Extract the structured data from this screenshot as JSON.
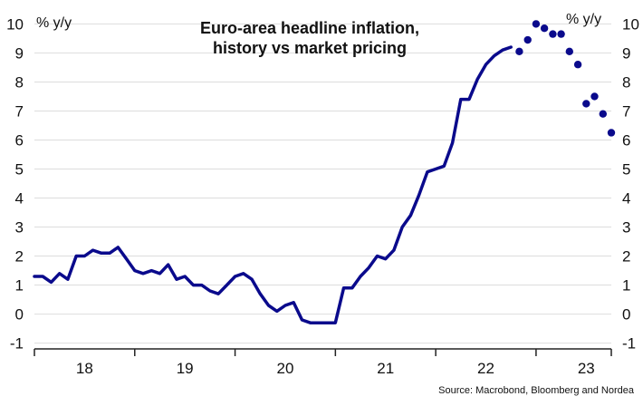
{
  "chart_data": {
    "type": "line",
    "title_lines": [
      "Euro-area headline inflation,",
      "history vs market pricing"
    ],
    "y_unit_left": "% y/y",
    "y_unit_right": "% y/y",
    "source": "Source: Macrobond, Bloomberg and Nordea",
    "ylim": [
      -1.2,
      10.2
    ],
    "yticks": [
      -1,
      0,
      1,
      2,
      3,
      4,
      5,
      6,
      7,
      8,
      9,
      10
    ],
    "xlim": [
      2017.5,
      2023.25
    ],
    "year_ticks": [
      2017.5,
      2018.5,
      2019.5,
      2020.5,
      2021.5,
      2022.5,
      2023.5
    ],
    "x_labels": [
      {
        "x": 2018.0,
        "text": "18"
      },
      {
        "x": 2019.0,
        "text": "19"
      },
      {
        "x": 2020.0,
        "text": "20"
      },
      {
        "x": 2021.0,
        "text": "21"
      },
      {
        "x": 2022.0,
        "text": "22"
      },
      {
        "x": 2023.0,
        "text": "23"
      }
    ],
    "grid": true,
    "colors": {
      "history": "#0a0a8c",
      "market": "#0a0a8c",
      "grid": "#dddddd",
      "axis": "#222222"
    },
    "series": [
      {
        "style": "line",
        "x": [
          2017.5,
          2017.583,
          2017.667,
          2017.75,
          2017.833,
          2017.917,
          2018.0,
          2018.083,
          2018.167,
          2018.25,
          2018.333,
          2018.417,
          2018.5,
          2018.583,
          2018.667,
          2018.75,
          2018.833,
          2018.917,
          2019.0,
          2019.083,
          2019.167,
          2019.25,
          2019.333,
          2019.417,
          2019.5,
          2019.583,
          2019.667,
          2019.75,
          2019.833,
          2019.917,
          2020.0,
          2020.083,
          2020.167,
          2020.25,
          2020.333,
          2020.417,
          2020.5,
          2020.583,
          2020.667,
          2020.75,
          2020.833,
          2020.917,
          2021.0,
          2021.083,
          2021.167,
          2021.25,
          2021.333,
          2021.417,
          2021.5,
          2021.583,
          2021.667,
          2021.75,
          2021.833,
          2021.917,
          2022.0,
          2022.083,
          2022.167,
          2022.25
        ],
        "y": [
          1.3,
          1.3,
          1.1,
          1.4,
          1.2,
          2.0,
          2.0,
          2.2,
          2.1,
          2.1,
          2.3,
          1.9,
          1.5,
          1.4,
          1.5,
          1.4,
          1.7,
          1.2,
          1.3,
          1.0,
          1.0,
          0.8,
          0.7,
          1.0,
          1.3,
          1.4,
          1.2,
          0.7,
          0.3,
          0.1,
          0.3,
          0.4,
          -0.2,
          -0.3,
          -0.3,
          -0.3,
          -0.3,
          0.9,
          0.9,
          1.3,
          1.6,
          2.0,
          1.9,
          2.2,
          3.0,
          3.4,
          4.1,
          4.9,
          5.0,
          5.1,
          5.9,
          7.4,
          7.4,
          8.1,
          8.6,
          8.9,
          9.1,
          9.2
        ]
      },
      {
        "style": "dots",
        "x": [
          2022.333,
          2022.417,
          2022.5,
          2022.583,
          2022.667,
          2022.75,
          2022.833,
          2022.917,
          2023.0,
          2023.083,
          2023.167,
          2023.25
        ],
        "y": [
          9.05,
          9.45,
          10.0,
          9.85,
          9.65,
          9.65,
          9.05,
          8.6,
          7.25,
          7.5,
          6.9,
          6.25
        ]
      }
    ]
  }
}
